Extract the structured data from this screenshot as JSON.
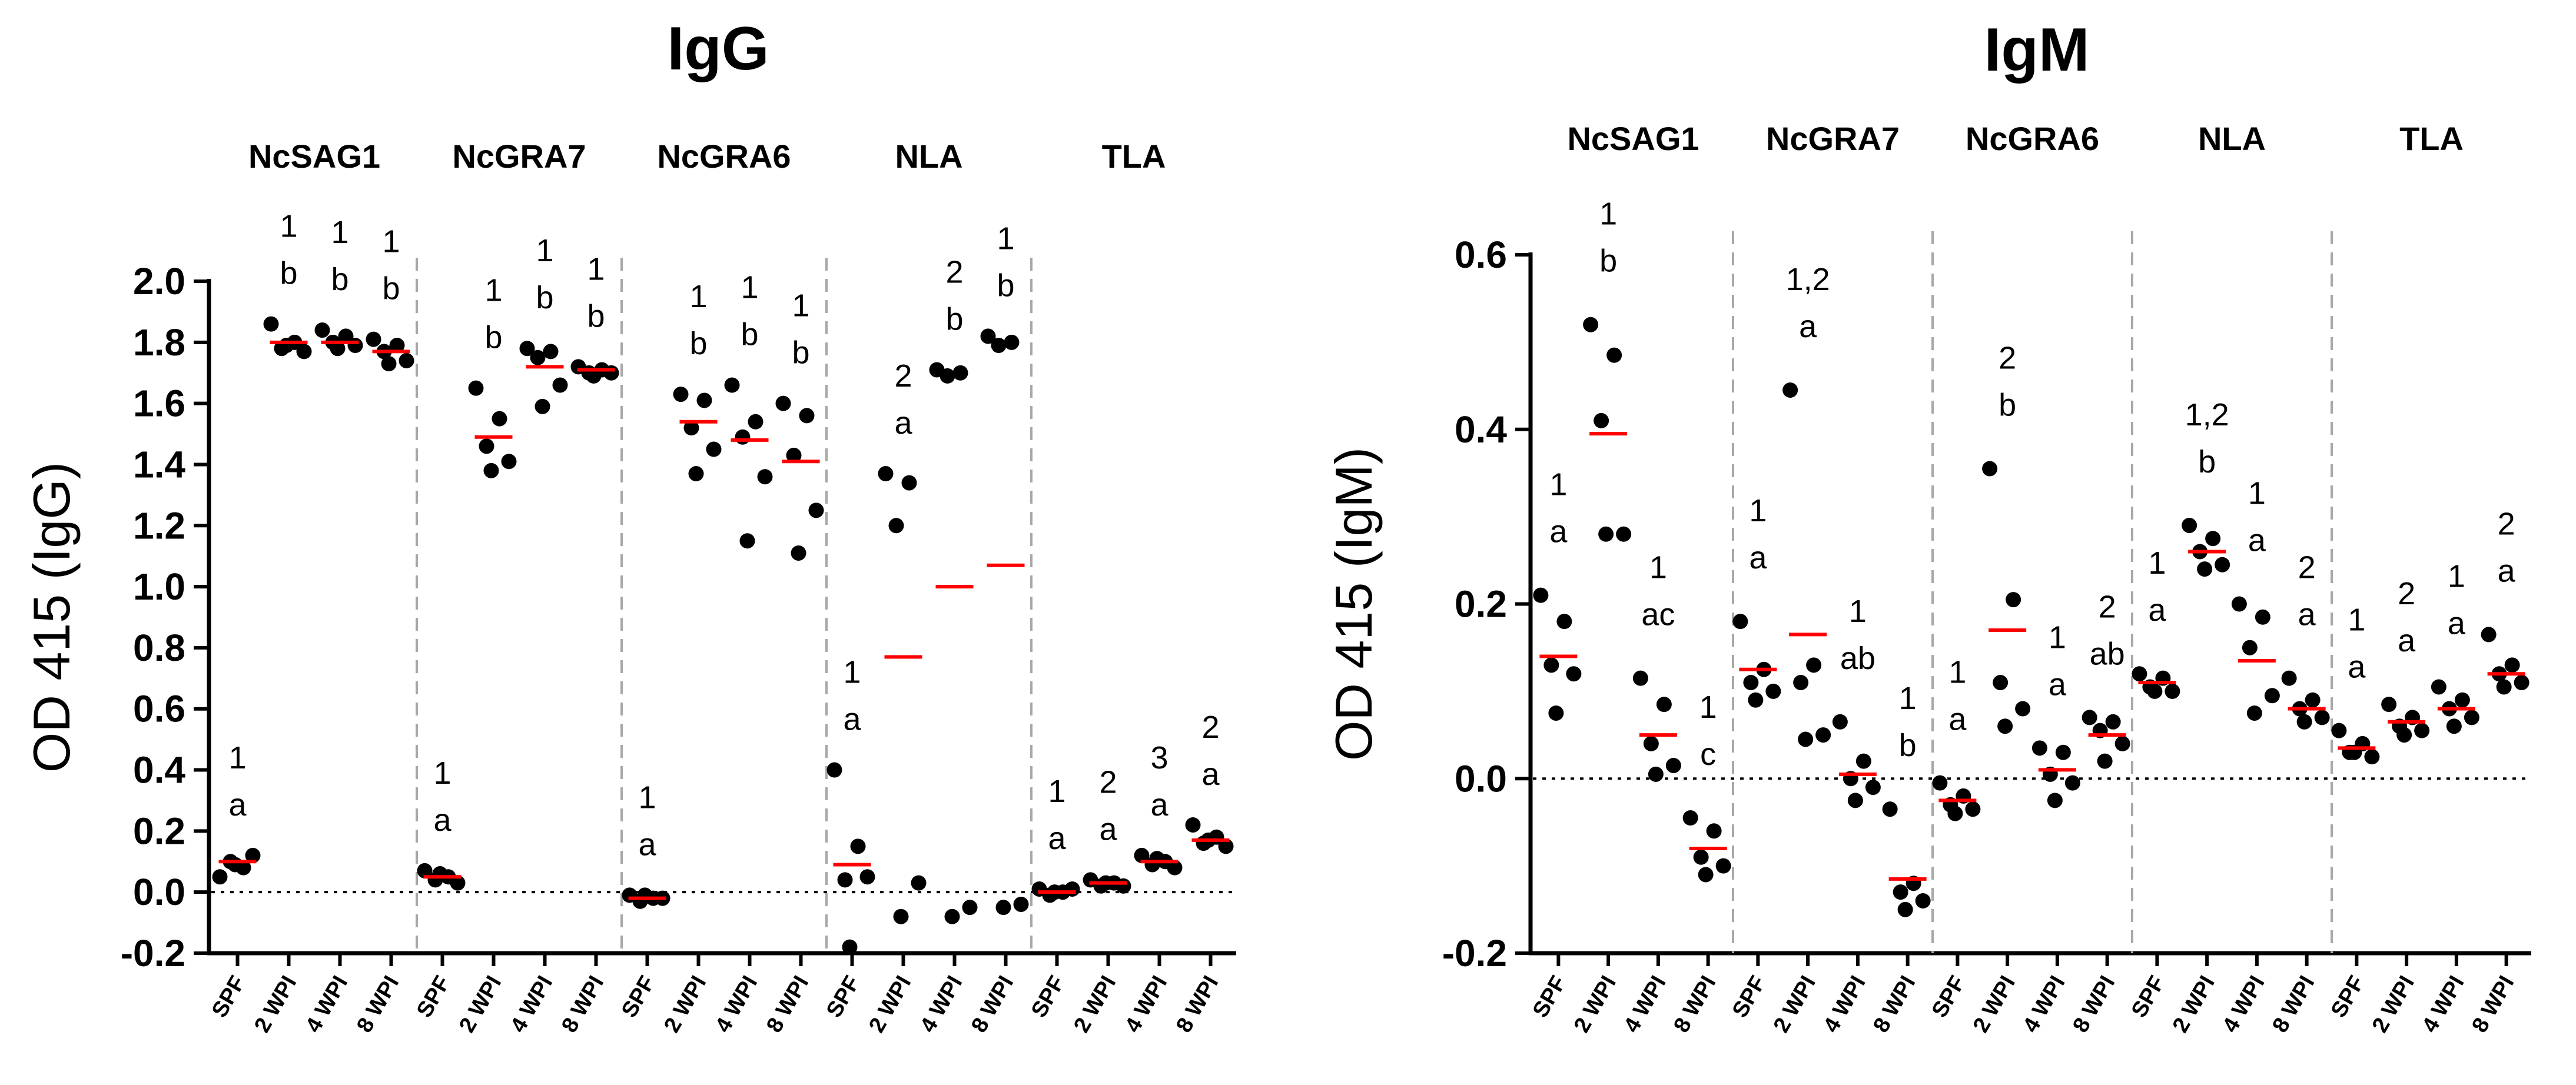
{
  "chart_data": [
    {
      "type": "scatter",
      "title": "IgG",
      "ylabel": "OD 415 (IgG)",
      "ylim": [
        -0.2,
        2.0
      ],
      "yticks": [
        "-0.2",
        "0.0",
        "0.2",
        "0.4",
        "0.6",
        "0.8",
        "1.0",
        "1.2",
        "1.4",
        "1.6",
        "1.8",
        "2.0"
      ],
      "groups": [
        {
          "name": "NcSAG1",
          "categories": [
            {
              "label": "SPF",
              "annotation": [
                "1",
                "a"
              ],
              "mean": 0.1,
              "values": [
                0.05,
                0.08,
                0.1,
                0.12,
                0.09
              ]
            },
            {
              "label": "2 WPI",
              "annotation": [
                "1",
                "b"
              ],
              "mean": 1.8,
              "values": [
                1.86,
                1.8,
                1.78,
                1.77,
                1.79
              ]
            },
            {
              "label": "4 WPI",
              "annotation": [
                "1",
                "b"
              ],
              "mean": 1.8,
              "values": [
                1.84,
                1.82,
                1.8,
                1.79,
                1.78
              ]
            },
            {
              "label": "8 WPI",
              "annotation": [
                "1",
                "b"
              ],
              "mean": 1.77,
              "values": [
                1.81,
                1.79,
                1.77,
                1.74,
                1.73
              ]
            }
          ]
        },
        {
          "name": "NcGRA7",
          "categories": [
            {
              "label": "SPF",
              "annotation": [
                "1",
                "a"
              ],
              "mean": 0.05,
              "values": [
                0.07,
                0.05,
                0.04,
                0.03,
                0.06
              ]
            },
            {
              "label": "2 WPI",
              "annotation": [
                "1",
                "b"
              ],
              "mean": 1.49,
              "values": [
                1.65,
                1.55,
                1.46,
                1.41,
                1.38
              ]
            },
            {
              "label": "4 WPI",
              "annotation": [
                "1",
                "b"
              ],
              "mean": 1.72,
              "values": [
                1.78,
                1.77,
                1.75,
                1.66,
                1.59
              ]
            },
            {
              "label": "8 WPI",
              "annotation": [
                "1",
                "b"
              ],
              "mean": 1.71,
              "values": [
                1.72,
                1.71,
                1.7,
                1.7,
                1.69
              ]
            }
          ]
        },
        {
          "name": "NcGRA6",
          "categories": [
            {
              "label": "SPF",
              "annotation": [
                "1",
                "a"
              ],
              "mean": -0.02,
              "values": [
                -0.01,
                -0.02,
                -0.03,
                -0.02,
                -0.01
              ]
            },
            {
              "label": "2 WPI",
              "annotation": [
                "1",
                "b"
              ],
              "mean": 1.54,
              "values": [
                1.63,
                1.61,
                1.52,
                1.45,
                1.37
              ]
            },
            {
              "label": "4 WPI",
              "annotation": [
                "1",
                "b"
              ],
              "mean": 1.48,
              "values": [
                1.66,
                1.54,
                1.49,
                1.36,
                1.15
              ]
            },
            {
              "label": "8 WPI",
              "annotation": [
                "1",
                "b"
              ],
              "mean": 1.41,
              "values": [
                1.6,
                1.56,
                1.43,
                1.25,
                1.11
              ]
            }
          ]
        },
        {
          "name": "NLA",
          "categories": [
            {
              "label": "SPF",
              "annotation": [
                "1",
                "a"
              ],
              "mean": 0.09,
              "values": [
                0.4,
                0.15,
                0.04,
                0.05,
                -0.18
              ]
            },
            {
              "label": "2 WPI",
              "annotation": [
                "2",
                "a"
              ],
              "mean": 0.77,
              "values": [
                1.37,
                1.34,
                1.2,
                0.03,
                -0.08
              ]
            },
            {
              "label": "4 WPI",
              "annotation": [
                "2",
                "b"
              ],
              "mean": 1.0,
              "values": [
                1.71,
                1.7,
                1.69,
                -0.05,
                -0.08
              ]
            },
            {
              "label": "8 WPI",
              "annotation": [
                "1",
                "b"
              ],
              "mean": 1.07,
              "values": [
                1.82,
                1.8,
                1.79,
                -0.04,
                -0.05
              ]
            }
          ]
        },
        {
          "name": "TLA",
          "categories": [
            {
              "label": "SPF",
              "annotation": [
                "1",
                "a"
              ],
              "mean": 0.0,
              "values": [
                0.01,
                0.0,
                -0.01,
                0.01,
                0.0
              ]
            },
            {
              "label": "2 WPI",
              "annotation": [
                "2",
                "a"
              ],
              "mean": 0.03,
              "values": [
                0.04,
                0.03,
                0.02,
                0.02,
                0.03
              ]
            },
            {
              "label": "4 WPI",
              "annotation": [
                "3",
                "a"
              ],
              "mean": 0.1,
              "values": [
                0.12,
                0.1,
                0.09,
                0.08,
                0.11
              ]
            },
            {
              "label": "8 WPI",
              "annotation": [
                "2",
                "a"
              ],
              "mean": 0.17,
              "values": [
                0.22,
                0.18,
                0.16,
                0.15,
                0.17
              ]
            }
          ]
        }
      ]
    },
    {
      "type": "scatter",
      "title": "IgM",
      "ylabel": "OD 415 (IgM)",
      "ylim": [
        -0.2,
        0.6
      ],
      "yticks": [
        "-0.2",
        "0.0",
        "0.2",
        "0.4",
        "0.6"
      ],
      "groups": [
        {
          "name": "NcSAG1",
          "categories": [
            {
              "label": "SPF",
              "annotation": [
                "1",
                "a"
              ],
              "mean": 0.14,
              "values": [
                0.21,
                0.18,
                0.13,
                0.12,
                0.075
              ]
            },
            {
              "label": "2 WPI",
              "annotation": [
                "1",
                "b"
              ],
              "mean": 0.395,
              "values": [
                0.52,
                0.485,
                0.41,
                0.28,
                0.28
              ]
            },
            {
              "label": "4 WPI",
              "annotation": [
                "1",
                "ac"
              ],
              "mean": 0.05,
              "values": [
                0.115,
                0.085,
                0.04,
                0.015,
                0.005
              ]
            },
            {
              "label": "8 WPI",
              "annotation": [
                "1",
                "c"
              ],
              "mean": -0.08,
              "values": [
                -0.045,
                -0.06,
                -0.09,
                -0.1,
                -0.11
              ]
            }
          ]
        },
        {
          "name": "NcGRA7",
          "categories": [
            {
              "label": "SPF",
              "annotation": [
                "1",
                "a"
              ],
              "mean": 0.125,
              "values": [
                0.18,
                0.125,
                0.11,
                0.1,
                0.09
              ]
            },
            {
              "label": "2 WPI",
              "annotation": [
                "1,2",
                "a"
              ],
              "mean": 0.165,
              "values": [
                0.445,
                0.13,
                0.11,
                0.05,
                0.045
              ]
            },
            {
              "label": "4 WPI",
              "annotation": [
                "1",
                "ab"
              ],
              "mean": 0.005,
              "values": [
                0.065,
                0.02,
                0.0,
                -0.01,
                -0.025
              ]
            },
            {
              "label": "8 WPI",
              "annotation": [
                "1",
                "b"
              ],
              "mean": -0.115,
              "values": [
                -0.035,
                -0.12,
                -0.13,
                -0.14,
                -0.15
              ]
            }
          ]
        },
        {
          "name": "NcGRA6",
          "categories": [
            {
              "label": "SPF",
              "annotation": [
                "1",
                "a"
              ],
              "mean": -0.025,
              "values": [
                -0.005,
                -0.02,
                -0.03,
                -0.035,
                -0.04
              ]
            },
            {
              "label": "2 WPI",
              "annotation": [
                "2",
                "b"
              ],
              "mean": 0.17,
              "values": [
                0.355,
                0.205,
                0.11,
                0.08,
                0.06
              ]
            },
            {
              "label": "4 WPI",
              "annotation": [
                "1",
                "a"
              ],
              "mean": 0.01,
              "values": [
                0.035,
                0.03,
                0.005,
                -0.005,
                -0.025
              ]
            },
            {
              "label": "8 WPI",
              "annotation": [
                "2",
                "ab"
              ],
              "mean": 0.05,
              "values": [
                0.07,
                0.065,
                0.055,
                0.04,
                0.02
              ]
            }
          ]
        },
        {
          "name": "NLA",
          "categories": [
            {
              "label": "SPF",
              "annotation": [
                "1",
                "a"
              ],
              "mean": 0.11,
              "values": [
                0.12,
                0.115,
                0.105,
                0.1,
                0.1
              ]
            },
            {
              "label": "2 WPI",
              "annotation": [
                "1,2",
                "b"
              ],
              "mean": 0.26,
              "values": [
                0.29,
                0.275,
                0.26,
                0.245,
                0.24
              ]
            },
            {
              "label": "4 WPI",
              "annotation": [
                "1",
                "a"
              ],
              "mean": 0.135,
              "values": [
                0.2,
                0.185,
                0.15,
                0.095,
                0.075
              ]
            },
            {
              "label": "8 WPI",
              "annotation": [
                "2",
                "a"
              ],
              "mean": 0.08,
              "values": [
                0.115,
                0.09,
                0.08,
                0.07,
                0.065
              ]
            }
          ]
        },
        {
          "name": "TLA",
          "categories": [
            {
              "label": "SPF",
              "annotation": [
                "1",
                "a"
              ],
              "mean": 0.035,
              "values": [
                0.055,
                0.04,
                0.03,
                0.025,
                0.03
              ]
            },
            {
              "label": "2 WPI",
              "annotation": [
                "2",
                "a"
              ],
              "mean": 0.065,
              "values": [
                0.085,
                0.07,
                0.06,
                0.055,
                0.05
              ]
            },
            {
              "label": "4 WPI",
              "annotation": [
                "1",
                "a"
              ],
              "mean": 0.08,
              "values": [
                0.105,
                0.09,
                0.08,
                0.07,
                0.06
              ]
            },
            {
              "label": "8 WPI",
              "annotation": [
                "2",
                "a"
              ],
              "mean": 0.12,
              "values": [
                0.165,
                0.13,
                0.12,
                0.11,
                0.105
              ]
            }
          ]
        }
      ]
    }
  ]
}
